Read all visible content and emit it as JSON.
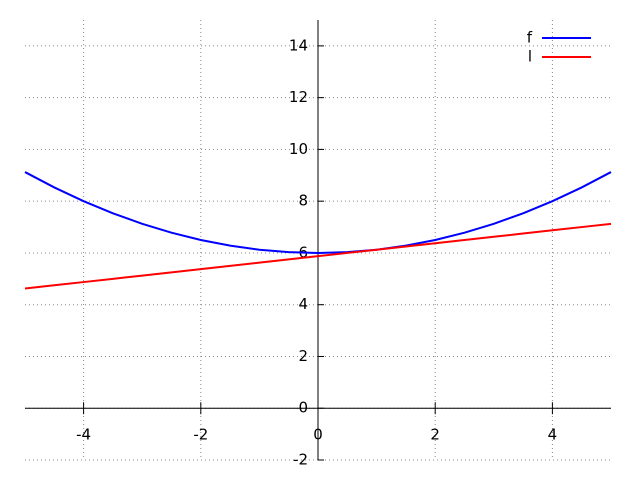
{
  "chart_data": {
    "type": "line",
    "x": [
      -5,
      -4.5,
      -4,
      -3.5,
      -3,
      -2.5,
      -2,
      -1.5,
      -1,
      -0.5,
      0,
      0.5,
      1,
      1.5,
      2,
      2.5,
      3,
      3.5,
      4,
      4.5,
      5
    ],
    "series": [
      {
        "name": "f",
        "color": "#0000ff",
        "values": [
          9.125,
          8.53125,
          8,
          7.53125,
          7.125,
          6.78125,
          6.5,
          6.28125,
          6.125,
          6.03125,
          6,
          6.03125,
          6.125,
          6.28125,
          6.5,
          6.78125,
          7.125,
          7.53125,
          8,
          8.53125,
          9.125
        ]
      },
      {
        "name": "l",
        "color": "#ff0000",
        "values": [
          4.625,
          4.75,
          4.875,
          5,
          5.125,
          5.25,
          5.375,
          5.5,
          5.625,
          5.75,
          5.875,
          6,
          6.125,
          6.25,
          6.375,
          6.5,
          6.625,
          6.75,
          6.875,
          7,
          7.125
        ]
      }
    ],
    "xlim": [
      -5,
      5
    ],
    "ylim": [
      -2,
      15
    ],
    "xticks": [
      -4,
      -2,
      0,
      2,
      4
    ],
    "yticks": [
      -2,
      0,
      2,
      4,
      6,
      8,
      10,
      12,
      14
    ],
    "grid": true,
    "legend": "upper-right"
  }
}
